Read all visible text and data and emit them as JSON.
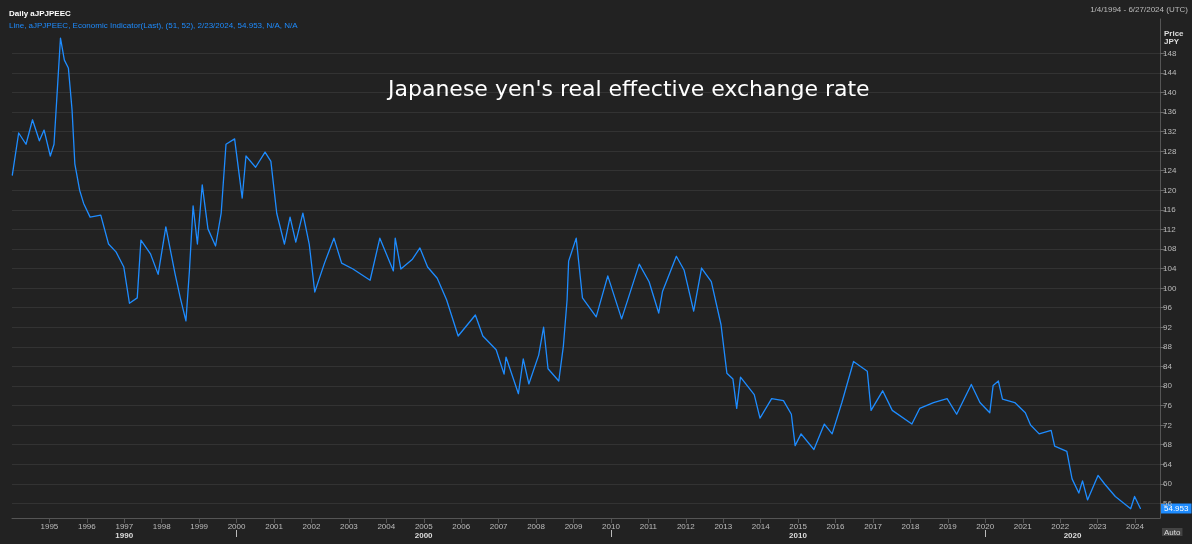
{
  "chart_data": {
    "type": "line",
    "title": "Japanese yen's real effective exchange rate",
    "subtitle": "Daily aJPJPEEC",
    "ylabel": "Price\nJPY",
    "annotations": [
      "1/4/1994 - 6/27/2024 (UTC)",
      "Auto",
      "1990",
      "2000",
      "2010",
      "2020",
      {
        "text": "54.953",
        "x": "2024-02-23",
        "y": 54.953
      }
    ],
    "legend": "top left",
    "grid": "y",
    "xlim": [
      "1994-01-01",
      "2024-09-01"
    ],
    "xticks": [
      {
        "value": "1995-01-01",
        "label": "1995"
      },
      {
        "value": "1996-01-01",
        "label": "1996"
      },
      {
        "value": "1997-01-01",
        "label": "1997"
      },
      {
        "value": "1998-01-01",
        "label": "1998"
      },
      {
        "value": "1999-01-01",
        "label": "1999"
      },
      {
        "value": "2000-01-01",
        "label": "2000"
      },
      {
        "value": "2001-01-01",
        "label": "2001"
      },
      {
        "value": "2002-01-01",
        "label": "2002"
      },
      {
        "value": "2003-01-01",
        "label": "2003"
      },
      {
        "value": "2004-01-01",
        "label": "2004"
      },
      {
        "value": "2005-01-01",
        "label": "2005"
      },
      {
        "value": "2006-01-01",
        "label": "2006"
      },
      {
        "value": "2007-01-01",
        "label": "2007"
      },
      {
        "value": "2008-01-01",
        "label": "2008"
      },
      {
        "value": "2009-01-01",
        "label": "2009"
      },
      {
        "value": "2010-01-01",
        "label": "2010"
      },
      {
        "value": "2011-01-01",
        "label": "2011"
      },
      {
        "value": "2012-01-01",
        "label": "2012"
      },
      {
        "value": "2013-01-01",
        "label": "2013"
      },
      {
        "value": "2014-01-01",
        "label": "2014"
      },
      {
        "value": "2015-01-01",
        "label": "2015"
      },
      {
        "value": "2016-01-01",
        "label": "2016"
      },
      {
        "value": "2017-01-01",
        "label": "2017"
      },
      {
        "value": "2018-01-01",
        "label": "2018"
      },
      {
        "value": "2019-01-01",
        "label": "2019"
      },
      {
        "value": "2020-01-01",
        "label": "2020"
      },
      {
        "value": "2021-01-01",
        "label": "2021"
      },
      {
        "value": "2022-01-01",
        "label": "2022"
      },
      {
        "value": "2023-01-01",
        "label": "2023"
      },
      {
        "value": "2024-01-01",
        "label": "2024"
      }
    ],
    "ylim": [
      53,
      155
    ],
    "yticks": [
      56,
      60,
      64,
      68,
      72,
      76,
      80,
      84,
      88,
      92,
      96,
      100,
      104,
      108,
      112,
      116,
      120,
      124,
      128,
      132,
      136,
      140,
      144,
      148
    ],
    "x": [
      "1994-01-04",
      "1994-03-07",
      "1994-05-18",
      "1994-07-20",
      "1994-09-25",
      "1994-11-10",
      "1995-01-10",
      "1995-02-15",
      "1995-04-19",
      "1995-05-27",
      "1995-07-05",
      "1995-08-10",
      "1995-09-06",
      "1995-10-23",
      "1995-12-01",
      "1996-02-02",
      "1996-05-16",
      "1996-07-31",
      "1996-10-12",
      "1996-12-27",
      "1997-02-20",
      "1997-05-07",
      "1997-06-12",
      "1997-09-13",
      "1997-11-27",
      "1998-02-10",
      "1998-05-12",
      "1998-07-01",
      "1998-08-25",
      "1998-09-28",
      "1998-11-03",
      "1998-12-15",
      "1999-01-31",
      "1999-03-28",
      "1999-06-10",
      "1999-08-04",
      "1999-09-20",
      "1999-12-13",
      "2000-02-25",
      "2000-04-02",
      "2000-07-05",
      "2000-10-05",
      "2000-12-01",
      "2001-01-27",
      "2001-04-12",
      "2001-06-06",
      "2001-08-01",
      "2001-10-09",
      "2001-12-10",
      "2002-02-02",
      "2002-05-08",
      "2002-08-08",
      "2002-10-22",
      "2003-02-10",
      "2003-07-27",
      "2003-10-30",
      "2004-03-10",
      "2004-03-28",
      "2004-05-22",
      "2004-09-12",
      "2004-11-24",
      "2005-02-07",
      "2005-05-12",
      "2005-08-11",
      "2005-12-02",
      "2006-05-19",
      "2006-07-31",
      "2006-12-08",
      "2007-02-23",
      "2007-03-14",
      "2007-07-13",
      "2007-08-29",
      "2007-10-23",
      "2008-01-27",
      "2008-03-15",
      "2008-04-27",
      "2008-08-10",
      "2008-09-24",
      "2008-10-30",
      "2008-11-14",
      "2009-01-27",
      "2009-03-29",
      "2009-08-10",
      "2009-12-01",
      "2010-04-15",
      "2010-10-04",
      "2011-01-08",
      "2011-04-12",
      "2011-05-19",
      "2011-10-01",
      "2011-12-15",
      "2012-03-18",
      "2012-06-03",
      "2012-09-06",
      "2012-12-10",
      "2013-02-05",
      "2013-04-05",
      "2013-05-12",
      "2013-06-18",
      "2013-10-30",
      "2013-12-25",
      "2014-04-18",
      "2014-08-11",
      "2014-10-27",
      "2014-12-03",
      "2015-01-30",
      "2015-06-04",
      "2015-09-14",
      "2015-11-29",
      "2016-03-03",
      "2016-06-25",
      "2016-11-06",
      "2016-12-13",
      "2017-04-05",
      "2017-07-08",
      "2018-01-15",
      "2018-04-01",
      "2018-08-14",
      "2018-12-25",
      "2019-03-28",
      "2019-08-18",
      "2019-11-10",
      "2020-02-14",
      "2020-03-18",
      "2020-05-08",
      "2020-06-17",
      "2020-10-15",
      "2021-01-26",
      "2021-03-18",
      "2021-06-10",
      "2021-10-05",
      "2021-11-08",
      "2022-03-07",
      "2022-04-27",
      "2022-07-02",
      "2022-08-07",
      "2022-09-25",
      "2023-01-05",
      "2023-03-13",
      "2023-06-23",
      "2023-11-20",
      "2023-12-28",
      "2024-02-23"
    ],
    "series": [
      {
        "name": "Line, aJPJPEEC, Economic Indicator(Last), (51, 52), 2/23/2024, 54.953, N/A, N/A",
        "color": "#1e8cff",
        "values": [
          123.1,
          131.7,
          129.4,
          134.4,
          130.1,
          132.3,
          127.0,
          129.4,
          151.1,
          146.6,
          145.0,
          136.4,
          125.4,
          120.0,
          117.3,
          114.5,
          114.9,
          109.0,
          107.4,
          104.3,
          96.9,
          98.0,
          109.8,
          107.0,
          102.8,
          112.5,
          102.8,
          98.0,
          93.3,
          103.5,
          116.8,
          109.0,
          121.1,
          112.1,
          108.6,
          115.3,
          129.4,
          130.5,
          118.4,
          127.0,
          124.7,
          127.8,
          125.9,
          115.3,
          109.0,
          114.5,
          109.4,
          115.3,
          109.0,
          99.2,
          105.1,
          110.2,
          105.1,
          103.9,
          101.6,
          110.2,
          103.5,
          110.2,
          103.9,
          105.9,
          108.2,
          104.3,
          102.0,
          97.6,
          90.2,
          94.5,
          90.2,
          87.4,
          82.4,
          85.9,
          78.4,
          85.5,
          80.4,
          86.3,
          92.0,
          83.5,
          81.0,
          88.2,
          97.6,
          105.5,
          110.2,
          98.0,
          94.1,
          102.5,
          93.7,
          104.9,
          101.3,
          94.9,
          99.3,
          106.5,
          103.7,
          95.3,
          104.1,
          101.3,
          92.5,
          82.6,
          81.4,
          75.4,
          81.8,
          78.2,
          73.4,
          77.4,
          77.0,
          74.2,
          67.8,
          70.2,
          67.0,
          72.2,
          70.2,
          76.6,
          85.0,
          83.0,
          75.0,
          79.0,
          75.0,
          72.2,
          75.4,
          76.6,
          77.4,
          74.2,
          80.3,
          76.6,
          74.5,
          80.1,
          81.0,
          77.3,
          76.6,
          74.5,
          72.0,
          70.2,
          70.9,
          67.7,
          66.6,
          61.0,
          58.1,
          60.6,
          56.7,
          61.7,
          59.9,
          57.4,
          54.9,
          57.4,
          54.953
        ]
      }
    ]
  }
}
